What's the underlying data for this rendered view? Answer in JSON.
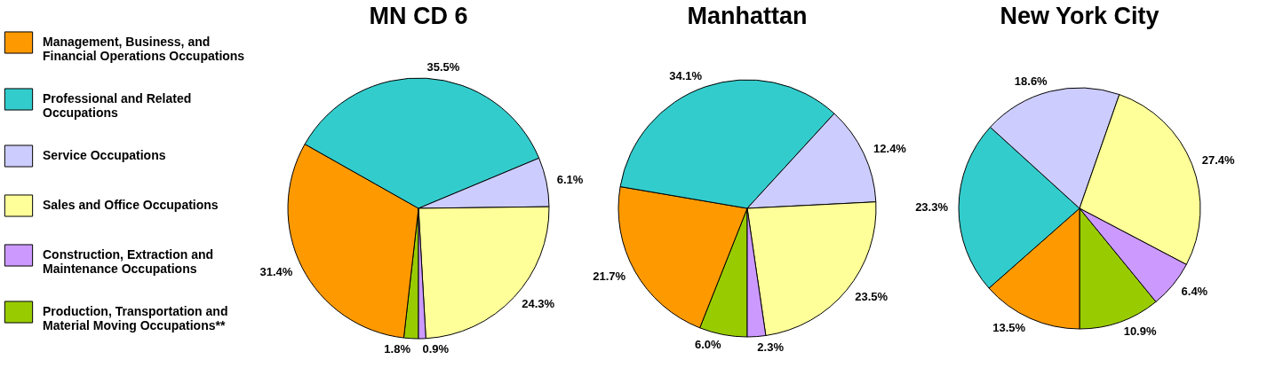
{
  "chart_data": [
    {
      "type": "pie",
      "title": "MN CD 6",
      "legend": "left",
      "categories": [
        "Production, Transportation and Material Moving Occupations**",
        "Management, Business, and Financial Operations Occupations",
        "Professional and Related Occupations",
        "Service Occupations",
        "Sales and Office Occupations",
        "Construction, Extraction and Maintenance Occupations"
      ],
      "values": [
        1.8,
        31.4,
        35.5,
        6.1,
        24.3,
        0.9
      ],
      "colors": [
        "#99cc00",
        "#ff9900",
        "#33cccc",
        "#ccccff",
        "#ffff99",
        "#cc99ff"
      ],
      "value_labels": [
        "1.8%",
        "31.4%",
        "35.5%",
        "6.1%",
        "24.3%",
        "0.9%"
      ]
    },
    {
      "type": "pie",
      "title": "Manhattan",
      "categories": [
        null,
        null,
        null,
        null,
        null,
        null
      ],
      "values": [
        6.0,
        21.7,
        34.1,
        12.4,
        23.5,
        2.3
      ],
      "colors": [
        "#99cc00",
        "#ff9900",
        "#33cccc",
        "#ccccff",
        "#ffff99",
        "#cc99ff"
      ],
      "value_labels": [
        "6.0%",
        "21.7%",
        "34.1%",
        "12.4%",
        "23.5%",
        "2.3%"
      ]
    },
    {
      "type": "pie",
      "title": "New York City",
      "categories": [
        null,
        null,
        null,
        null,
        null,
        null
      ],
      "values": [
        10.9,
        13.5,
        23.3,
        18.6,
        27.4,
        6.4
      ],
      "colors": [
        "#99cc00",
        "#ff9900",
        "#33cccc",
        "#ccccff",
        "#ffff99",
        "#cc99ff"
      ],
      "value_labels": [
        "10.9%",
        "13.5%",
        "23.3%",
        "18.6%",
        "27.4%",
        "6.4%"
      ]
    }
  ]
}
